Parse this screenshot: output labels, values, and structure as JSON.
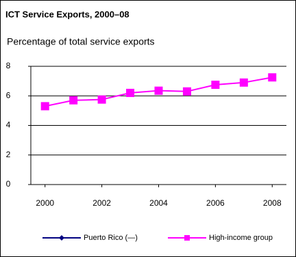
{
  "chart_data": {
    "type": "line",
    "title": "ICT Service Exports, 2000–08",
    "subtitle": "Percentage of total service exports",
    "x": [
      2000,
      2001,
      2002,
      2003,
      2004,
      2005,
      2006,
      2007,
      2008
    ],
    "series": [
      {
        "name": "Puerto Rico (—)",
        "color": "#000080",
        "marker": "diamond",
        "values": [
          null,
          null,
          null,
          null,
          null,
          null,
          null,
          null,
          null
        ]
      },
      {
        "name": "High-income group",
        "color": "#ff00ff",
        "marker": "square",
        "values": [
          5.3,
          5.7,
          5.75,
          6.2,
          6.35,
          6.3,
          6.75,
          6.9,
          7.25
        ]
      }
    ],
    "xlim": [
      1999.5,
      2008.5
    ],
    "xticks": [
      2000,
      2002,
      2004,
      2006,
      2008
    ],
    "ylim": [
      0,
      8
    ],
    "yticks": [
      0,
      2,
      4,
      6,
      8
    ],
    "grid": true
  }
}
